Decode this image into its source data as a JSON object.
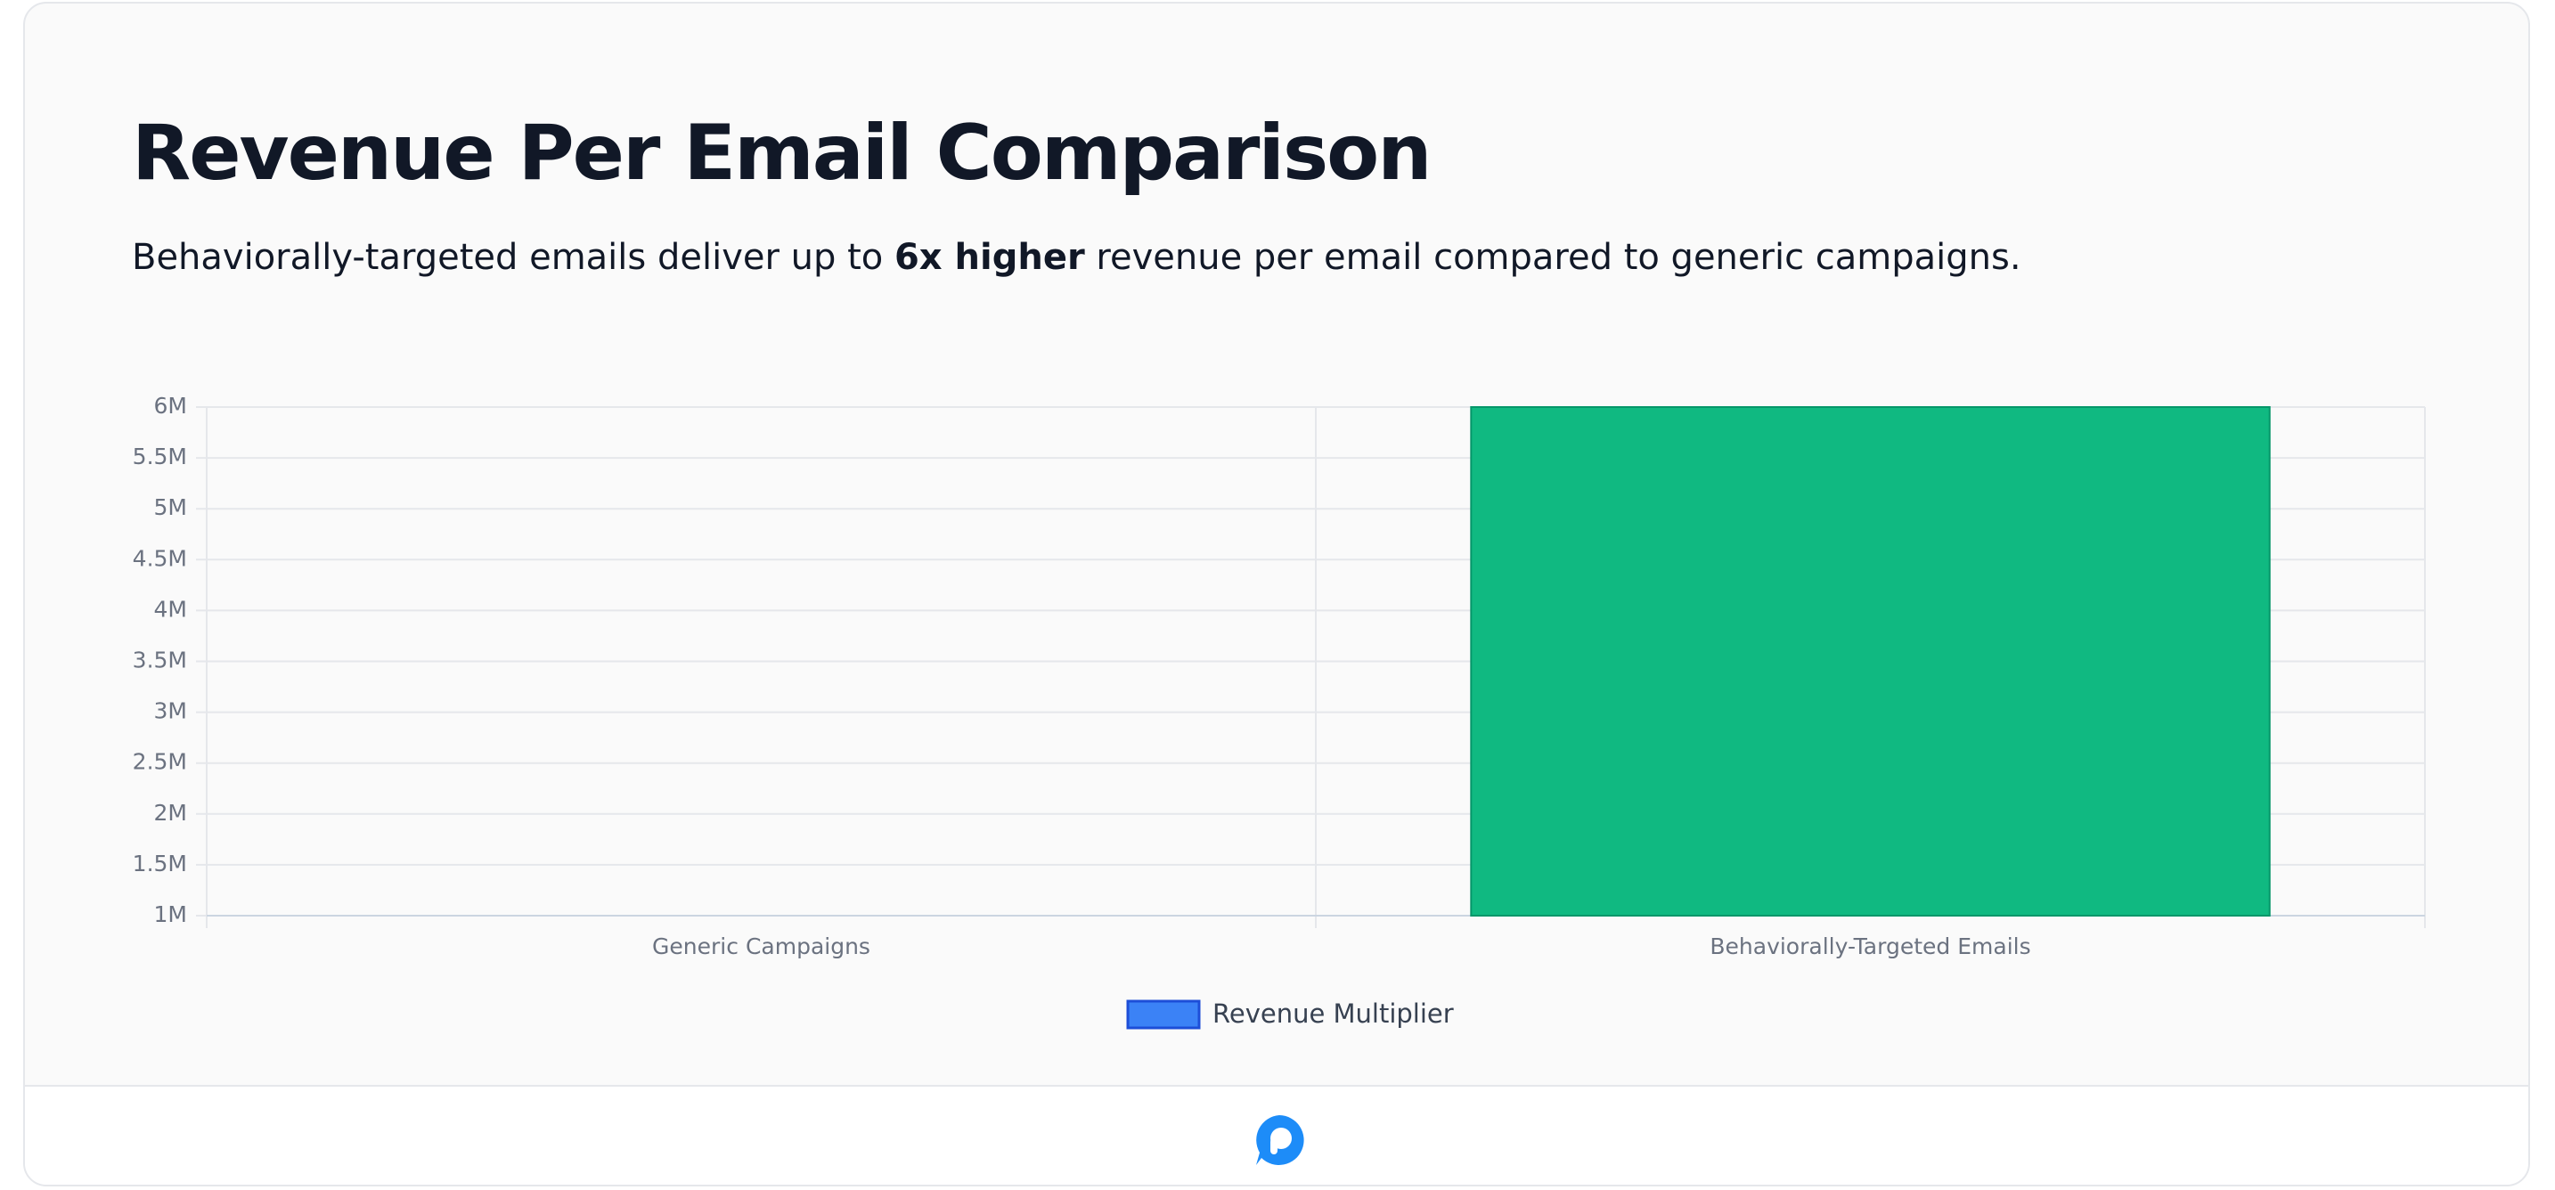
{
  "title": "Revenue Per Email Comparison",
  "subtitle": {
    "before": "Behaviorally-targeted emails deliver up to ",
    "bold": "6x higher",
    "after": " revenue per email compared to generic campaigns."
  },
  "chart_data": {
    "type": "bar",
    "categories": [
      "Generic Campaigns",
      "Behaviorally-Targeted Emails"
    ],
    "series": [
      {
        "name": "Revenue Multiplier",
        "color": "#3b82f6",
        "values": [
          1000000,
          6000000
        ]
      }
    ],
    "bar_colors": [
      "#3b82f6",
      "#10b981"
    ],
    "ylim": [
      1000000,
      6000000
    ],
    "yticks": [
      {
        "value": 1000000,
        "label": "1M"
      },
      {
        "value": 1500000,
        "label": "1.5M"
      },
      {
        "value": 2000000,
        "label": "2M"
      },
      {
        "value": 2500000,
        "label": "2.5M"
      },
      {
        "value": 3000000,
        "label": "3M"
      },
      {
        "value": 3500000,
        "label": "3.5M"
      },
      {
        "value": 4000000,
        "label": "4M"
      },
      {
        "value": 4500000,
        "label": "4.5M"
      },
      {
        "value": 5000000,
        "label": "5M"
      },
      {
        "value": 5500000,
        "label": "5.5M"
      },
      {
        "value": 6000000,
        "label": "6M"
      }
    ],
    "grid": true,
    "legend": "bottom"
  }
}
